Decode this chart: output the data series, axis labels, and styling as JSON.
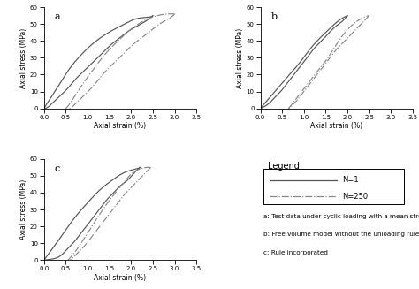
{
  "xlim": [
    0,
    3.5
  ],
  "ylim": [
    0,
    60
  ],
  "xlabel": "Axial strain (%)",
  "ylabel": "Axial stress (MPa)",
  "yticks": [
    0,
    10,
    20,
    30,
    40,
    50,
    60
  ],
  "xticks": [
    0,
    0.5,
    1.0,
    1.5,
    2.0,
    2.5,
    3.0,
    3.5
  ],
  "line_color_N1": "#555555",
  "line_color_N250": "#888888",
  "legend_title": "Legend:",
  "legend_N1": "N=1",
  "legend_N250": "N=250",
  "note_a": "a: Test data under cyclic loading with a mean stress",
  "note_b": "b: Free volume model without the unloading rule",
  "note_c": "c: Rule incorporated",
  "label_a": "a",
  "label_b": "b",
  "label_c": "c"
}
